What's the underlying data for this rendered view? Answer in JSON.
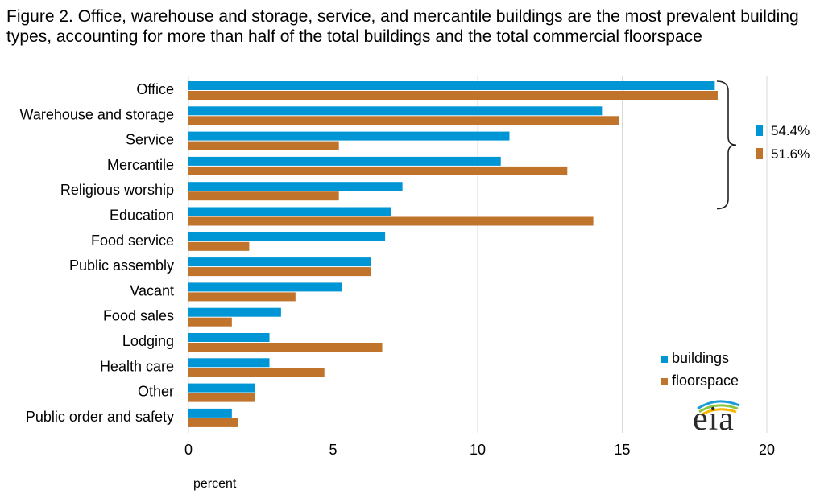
{
  "title": "Figure 2.  Office, warehouse and storage, service,  and mercantile buildings are the most prevalent building types, accounting for more than half of the total buildings and the total commercial floorspace",
  "logo": {
    "text": "eia",
    "colors": [
      "#1a9bd7",
      "#8cc63f",
      "#f7b500"
    ]
  },
  "chart_data": {
    "type": "bar",
    "orientation": "horizontal",
    "categories": [
      "Office",
      "Warehouse and storage",
      "Service",
      "Mercantile",
      "Religious worship",
      "Education",
      "Food service",
      "Public assembly",
      "Vacant",
      "Food sales",
      "Lodging",
      "Health care",
      "Other",
      "Public order and safety"
    ],
    "series": [
      {
        "name": "buildings",
        "color": "#0096d6",
        "values": [
          18.2,
          14.3,
          11.1,
          10.8,
          7.4,
          7.0,
          6.8,
          6.3,
          5.3,
          3.2,
          2.8,
          2.8,
          2.3,
          1.5
        ]
      },
      {
        "name": "floorspace",
        "color": "#c0732a",
        "values": [
          18.3,
          14.9,
          5.2,
          13.1,
          5.2,
          14.0,
          2.1,
          6.3,
          3.7,
          1.5,
          6.7,
          4.7,
          2.3,
          1.7
        ]
      }
    ],
    "xlabel": "percent",
    "ylabel": "",
    "xlim": [
      0,
      20
    ],
    "xticks": [
      "0",
      "5",
      "10",
      "15",
      "20"
    ],
    "grid": true,
    "legend": "bottom-right",
    "annotations": [
      {
        "text": "54.4%",
        "series": "buildings",
        "spans": [
          "Office",
          "Warehouse and storage",
          "Service",
          "Mercantile",
          "Religious worship"
        ]
      },
      {
        "text": "51.6%",
        "series": "floorspace",
        "spans": [
          "Office",
          "Warehouse and storage",
          "Service",
          "Mercantile",
          "Religious worship"
        ]
      }
    ]
  }
}
